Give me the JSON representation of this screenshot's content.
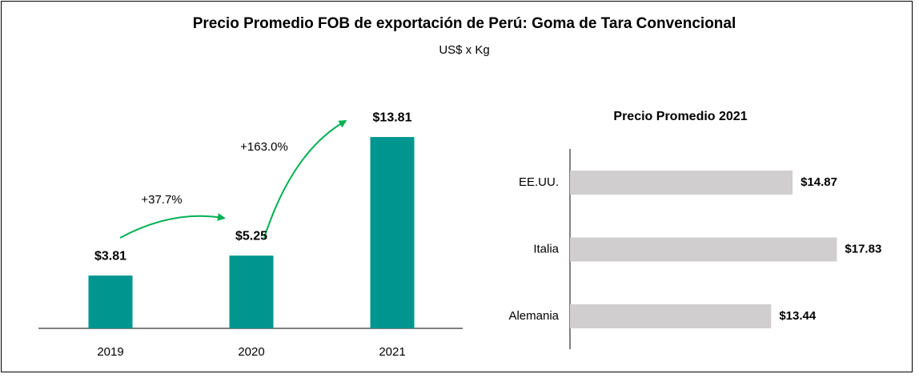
{
  "title": "Precio Promedio FOB de exportación de Perú: Goma de Tara Convencional",
  "subtitle": "US$ x Kg",
  "chart_data": [
    {
      "type": "bar",
      "categories": [
        "2019",
        "2020",
        "2021"
      ],
      "values": [
        3.81,
        5.25,
        13.81
      ],
      "value_labels": [
        "$3.81",
        "$5.25",
        "$13.81"
      ],
      "color": "#00968f",
      "annotations": [
        "+37.7%",
        "+163.0%"
      ]
    },
    {
      "type": "hbar",
      "title": "Precio Promedio 2021",
      "categories": [
        "EE.UU.",
        "Italia",
        "Alemania"
      ],
      "values": [
        14.87,
        17.83,
        13.44
      ],
      "value_labels": [
        "$14.87",
        "$17.83",
        "$13.44"
      ],
      "color": "#d0cece"
    }
  ]
}
